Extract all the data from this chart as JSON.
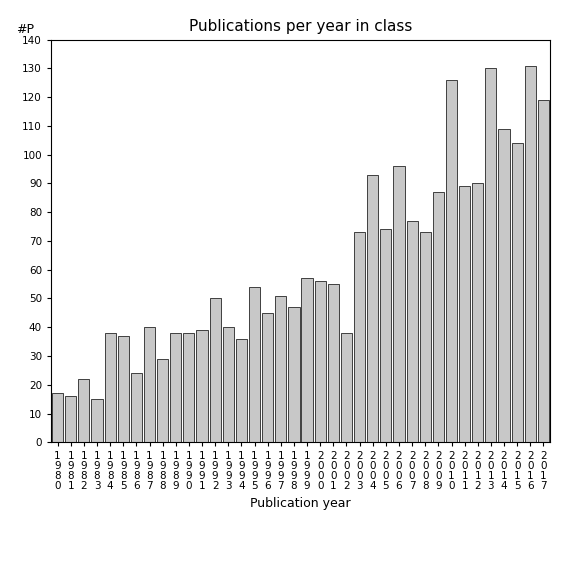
{
  "title": "Publications per year in class",
  "xlabel": "Publication year",
  "ylabel": "#P",
  "years": [
    "1980",
    "1981",
    "1982",
    "1983",
    "1984",
    "1985",
    "1986",
    "1987",
    "1988",
    "1989",
    "1990",
    "1991",
    "1992",
    "1993",
    "1994",
    "1995",
    "1996",
    "1997",
    "1998",
    "1999",
    "2000",
    "2001",
    "2002",
    "2003",
    "2004",
    "2005",
    "2006",
    "2007",
    "2008",
    "2009",
    "2010",
    "2011",
    "2012",
    "2013",
    "2014",
    "2015",
    "2016",
    "2017"
  ],
  "values": [
    17,
    16,
    22,
    15,
    38,
    37,
    24,
    40,
    29,
    38,
    38,
    39,
    50,
    40,
    36,
    54,
    45,
    51,
    47,
    57,
    56,
    55,
    38,
    73,
    93,
    74,
    96,
    77,
    73,
    87,
    126,
    89,
    90,
    130,
    109,
    104,
    131,
    119
  ],
  "bar_color": "#c8c8c8",
  "bar_edgecolor": "#000000",
  "ylim": [
    0,
    140
  ],
  "yticks": [
    0,
    10,
    20,
    30,
    40,
    50,
    60,
    70,
    80,
    90,
    100,
    110,
    120,
    130,
    140
  ],
  "bg_color": "#ffffff",
  "title_fontsize": 11,
  "label_fontsize": 9,
  "tick_fontsize": 7.5
}
